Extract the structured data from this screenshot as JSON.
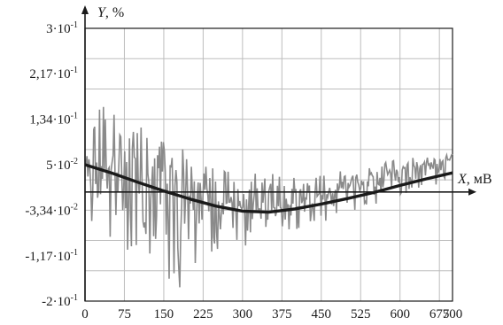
{
  "chart_data": {
    "type": "line",
    "xlabel_var": "X",
    "xlabel_unit": ", мВ",
    "ylabel_var": "Y",
    "ylabel_unit": ", %",
    "xlim": [
      0,
      700
    ],
    "ylim": [
      -0.2,
      0.3
    ],
    "grid": true,
    "x_ticks": [
      {
        "value": 0,
        "label": "0"
      },
      {
        "value": 75,
        "label": "75"
      },
      {
        "value": 150,
        "label": "150"
      },
      {
        "value": 225,
        "label": "225"
      },
      {
        "value": 300,
        "label": "300"
      },
      {
        "value": 375,
        "label": "375"
      },
      {
        "value": 450,
        "label": "450"
      },
      {
        "value": 525,
        "label": "525"
      },
      {
        "value": 600,
        "label": "600"
      },
      {
        "value": 675,
        "label": "675"
      },
      {
        "value": 700,
        "label": "700"
      }
    ],
    "y_ticks": [
      {
        "value": 0.3,
        "mant": "3·10",
        "exp": "-1"
      },
      {
        "value": 0.217,
        "mant": "2,17·10",
        "exp": "-1"
      },
      {
        "value": 0.134,
        "mant": "1,34·10",
        "exp": "-1"
      },
      {
        "value": 0.05,
        "mant": "5·10",
        "exp": "-2"
      },
      {
        "value": -0.0334,
        "mant": "-3,34·10",
        "exp": "-2"
      },
      {
        "value": -0.117,
        "mant": "-1,17·10",
        "exp": "-1"
      },
      {
        "value": -0.2,
        "mant": "-2·10",
        "exp": "-1"
      }
    ],
    "series": [
      {
        "style": "noisy",
        "color": "#8a8a8a",
        "x": [
          0,
          25,
          50,
          75,
          100,
          125,
          150,
          175,
          200,
          225,
          250,
          275,
          300,
          325,
          350,
          375,
          400,
          425,
          450,
          475,
          500,
          525,
          550,
          575,
          600,
          625,
          650,
          675,
          700
        ],
        "y_center": [
          0.052,
          0.046,
          0.04,
          0.034,
          0.025,
          0.016,
          0.01,
          0.0,
          -0.006,
          -0.012,
          -0.018,
          -0.024,
          -0.027,
          -0.03,
          -0.034,
          -0.028,
          -0.02,
          -0.012,
          -0.005,
          0.002,
          0.008,
          0.015,
          0.022,
          0.03,
          0.037,
          0.044,
          0.05,
          0.056,
          0.06
        ],
        "y_max": [
          0.19,
          0.175,
          0.16,
          0.145,
          0.13,
          0.115,
          0.1,
          0.085,
          0.07,
          0.055,
          0.045,
          0.06,
          0.05,
          0.035,
          0.04,
          0.045,
          0.035,
          0.03,
          0.04,
          0.045,
          0.04,
          0.045,
          0.05,
          0.055,
          0.06,
          0.063,
          0.066,
          0.068,
          0.07
        ],
        "y_min": [
          -0.1,
          -0.095,
          -0.09,
          -0.12,
          -0.14,
          -0.13,
          -0.16,
          -0.2,
          -0.14,
          -0.13,
          -0.12,
          -0.1,
          -0.1,
          -0.095,
          -0.09,
          -0.08,
          -0.07,
          -0.065,
          -0.06,
          -0.05,
          -0.04,
          -0.035,
          -0.025,
          -0.015,
          -0.01,
          0.0,
          0.005,
          0.01,
          0.02
        ]
      },
      {
        "style": "trend",
        "color": "#1a1a1a",
        "x": [
          0,
          50,
          100,
          150,
          200,
          250,
          300,
          350,
          400,
          450,
          500,
          550,
          600,
          650,
          700
        ],
        "y": [
          0.05,
          0.035,
          0.018,
          0.002,
          -0.013,
          -0.026,
          -0.035,
          -0.037,
          -0.031,
          -0.022,
          -0.012,
          -0.001,
          0.012,
          0.024,
          0.035
        ]
      }
    ]
  }
}
